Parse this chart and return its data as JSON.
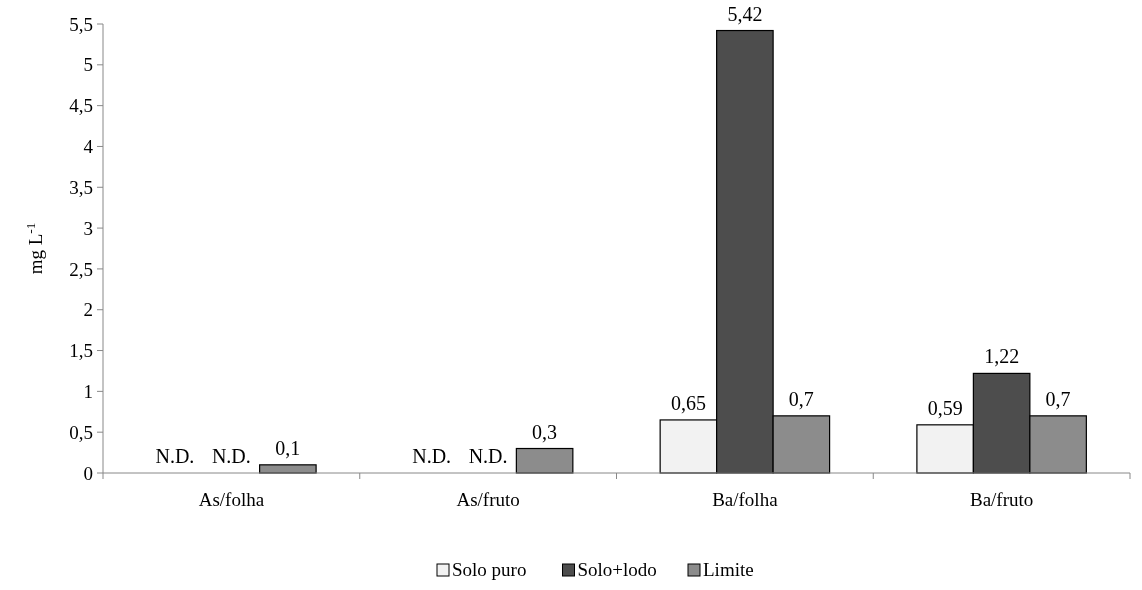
{
  "chart_data": {
    "type": "bar",
    "ylabel": "mg L$^{-1}$",
    "categories": [
      "As/folha",
      "As/fruto",
      "Ba/folha",
      "Ba/fruto"
    ],
    "series": [
      {
        "name": "Solo puro",
        "color": "#f2f2f2",
        "values": [
          null,
          null,
          0.65,
          0.59
        ],
        "value_labels": [
          "N.D.",
          "N.D.",
          "0,65",
          "0,59"
        ]
      },
      {
        "name": "Solo+lodo",
        "color": "#4d4d4d",
        "values": [
          null,
          null,
          5.42,
          1.22
        ],
        "value_labels": [
          "N.D.",
          "N.D.",
          "5,42",
          "1,22"
        ]
      },
      {
        "name": "Limite",
        "color": "#8c8c8c",
        "values": [
          0.1,
          0.3,
          0.7,
          0.7
        ],
        "value_labels": [
          "0,1",
          "0,3",
          "0,7",
          "0,7"
        ]
      }
    ],
    "ylim": [
      0,
      5.5
    ],
    "yticks": [
      0,
      {
        "value": 0.5,
        "label": "0,5"
      },
      1,
      {
        "value": 1.5,
        "label": "1,5"
      },
      2,
      {
        "value": 2.5,
        "label": "2,5"
      },
      3,
      {
        "value": 3.5,
        "label": "3,5"
      },
      4,
      {
        "value": 4.5,
        "label": "4,5"
      },
      5,
      {
        "value": 5.5,
        "label": "5,5"
      }
    ],
    "grid": false,
    "legend": "bottom"
  }
}
